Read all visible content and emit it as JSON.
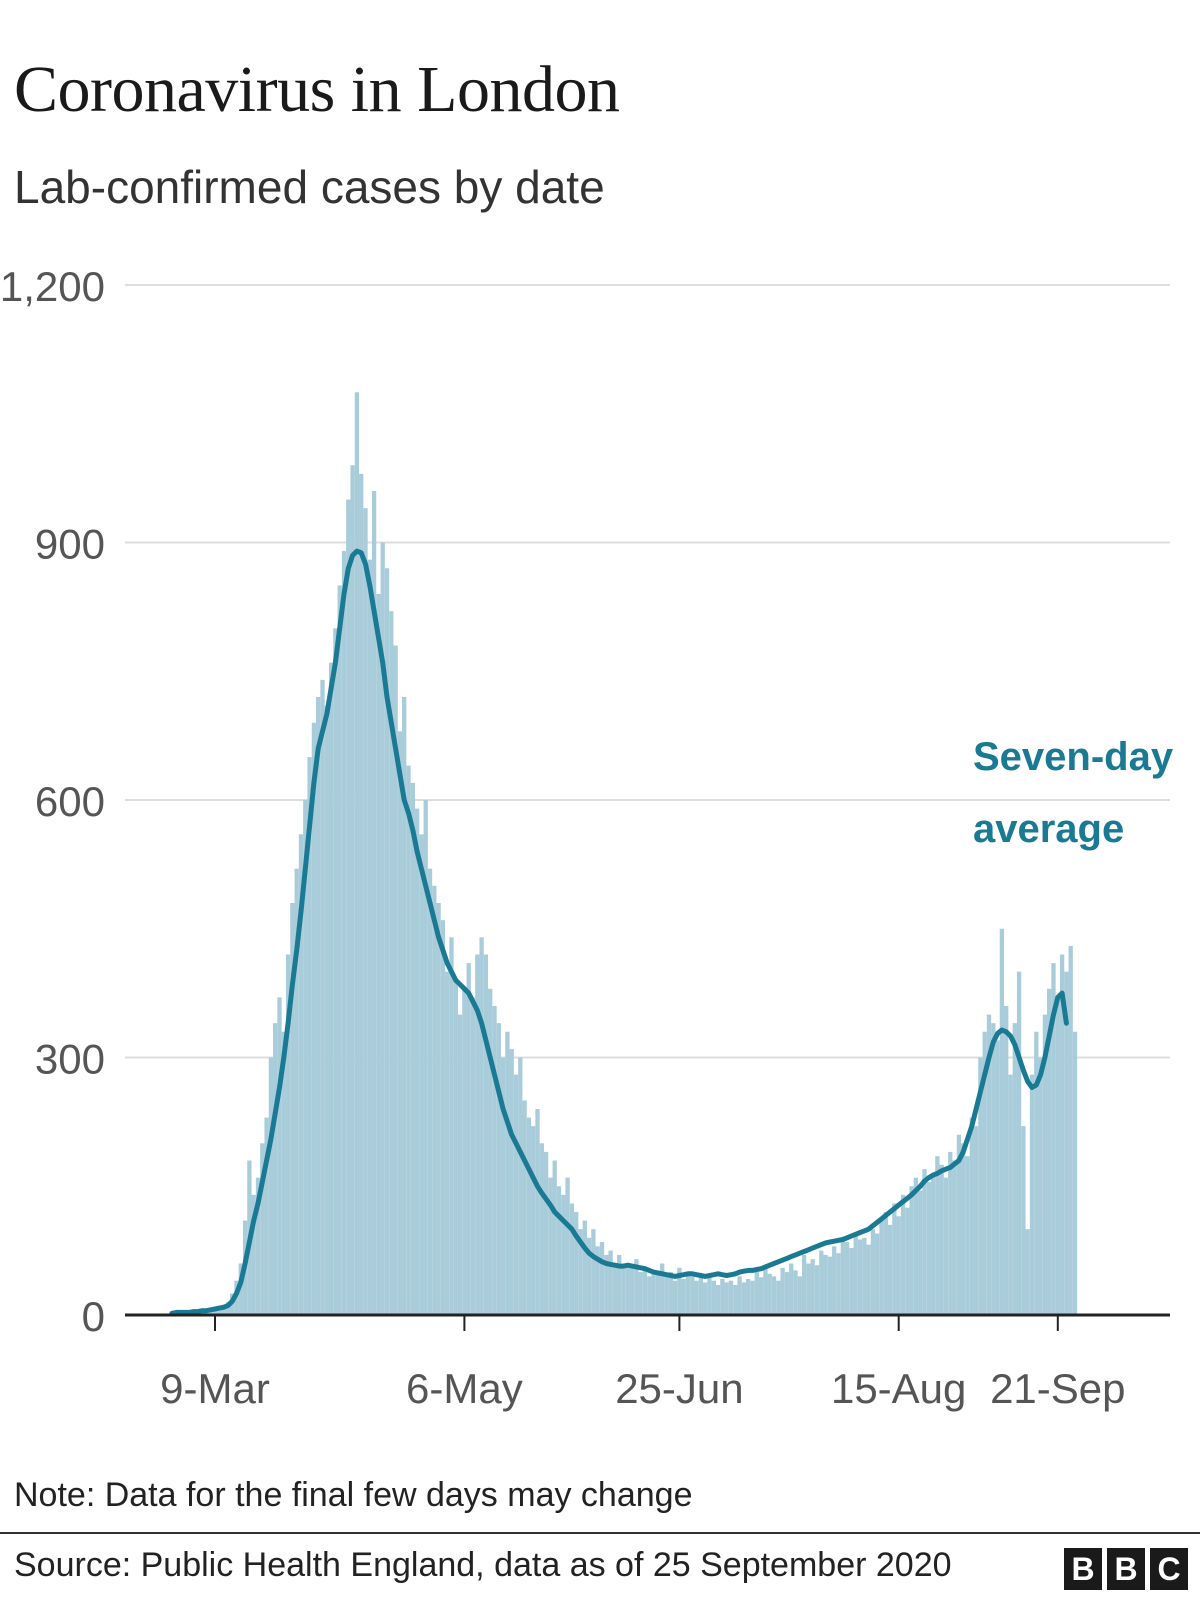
{
  "header": {
    "title": "Coronavirus in London",
    "subtitle": "Lab-confirmed cases by date"
  },
  "footer": {
    "note": "Note: Data for the final few days may change",
    "source": "Source: Public Health England, data as of 25 September 2020",
    "logo_letters": [
      "B",
      "B",
      "C"
    ]
  },
  "colors": {
    "bars": "#a8ccda",
    "line": "#1a7a93",
    "gridline": "#dddddd",
    "axis": "#222222",
    "tick_text": "#555555"
  },
  "chart_data": {
    "type": "bar",
    "title": "Coronavirus in London",
    "subtitle": "Lab-confirmed cases by date",
    "x_start": "2020-02-28",
    "x_ticks": [
      "9-Mar",
      "6-May",
      "25-Jun",
      "15-Aug",
      "21-Sep"
    ],
    "ylim": [
      0,
      1200
    ],
    "y_ticks": [
      0,
      300,
      600,
      900,
      1200
    ],
    "y_tick_labels": [
      "0",
      "300",
      "600",
      "900",
      "1,200"
    ],
    "grid": true,
    "series": [
      {
        "name": "Daily lab-confirmed cases",
        "kind": "bar",
        "values": [
          2,
          3,
          2,
          4,
          3,
          4,
          5,
          6,
          5,
          7,
          8,
          10,
          12,
          15,
          25,
          40,
          60,
          110,
          180,
          140,
          160,
          200,
          230,
          300,
          340,
          370,
          330,
          420,
          480,
          520,
          560,
          600,
          650,
          690,
          720,
          740,
          710,
          760,
          800,
          850,
          890,
          950,
          990,
          1075,
          980,
          940,
          880,
          960,
          840,
          900,
          870,
          820,
          780,
          680,
          720,
          640,
          620,
          590,
          560,
          600,
          520,
          500,
          480,
          460,
          400,
          440,
          390,
          350,
          380,
          410,
          370,
          420,
          440,
          420,
          380,
          360,
          340,
          300,
          330,
          310,
          280,
          300,
          250,
          230,
          220,
          240,
          200,
          190,
          160,
          180,
          150,
          140,
          160,
          130,
          120,
          100,
          110,
          90,
          100,
          80,
          85,
          70,
          75,
          60,
          70,
          55,
          60,
          55,
          65,
          50,
          55,
          45,
          50,
          48,
          60,
          45,
          50,
          40,
          55,
          42,
          50,
          45,
          40,
          48,
          38,
          45,
          40,
          35,
          42,
          38,
          40,
          35,
          45,
          38,
          42,
          40,
          50,
          44,
          55,
          48,
          45,
          40,
          55,
          50,
          60,
          52,
          45,
          70,
          60,
          65,
          58,
          75,
          70,
          68,
          80,
          72,
          90,
          85,
          78,
          95,
          88,
          90,
          82,
          100,
          95,
          110,
          120,
          105,
          130,
          115,
          140,
          125,
          150,
          160,
          145,
          170,
          155,
          165,
          185,
          175,
          160,
          190,
          180,
          210,
          200,
          185,
          230,
          220,
          300,
          330,
          350,
          340,
          320,
          450,
          360,
          280,
          340,
          400,
          220,
          100,
          280,
          330,
          300,
          350,
          380,
          410,
          370,
          420,
          400,
          430,
          330
        ]
      },
      {
        "name": "Seven-day average",
        "kind": "line",
        "values": [
          2,
          3,
          3,
          3,
          3,
          4,
          4,
          5,
          5,
          6,
          7,
          8,
          9,
          11,
          16,
          25,
          38,
          60,
          85,
          110,
          130,
          155,
          180,
          205,
          235,
          265,
          300,
          340,
          385,
          425,
          470,
          520,
          570,
          620,
          660,
          680,
          700,
          730,
          760,
          800,
          840,
          870,
          885,
          890,
          888,
          875,
          850,
          820,
          790,
          760,
          720,
          690,
          660,
          630,
          600,
          585,
          565,
          540,
          520,
          500,
          480,
          460,
          440,
          425,
          410,
          400,
          390,
          385,
          380,
          375,
          365,
          355,
          340,
          320,
          300,
          280,
          260,
          240,
          225,
          210,
          200,
          190,
          180,
          170,
          160,
          150,
          142,
          135,
          128,
          120,
          115,
          110,
          105,
          100,
          92,
          85,
          78,
          72,
          68,
          65,
          62,
          60,
          59,
          58,
          57,
          57,
          58,
          57,
          56,
          55,
          54,
          52,
          50,
          49,
          48,
          47,
          46,
          45,
          46,
          47,
          48,
          48,
          47,
          46,
          45,
          46,
          47,
          48,
          47,
          46,
          47,
          48,
          50,
          51,
          52,
          52,
          53,
          54,
          56,
          58,
          60,
          62,
          64,
          66,
          68,
          70,
          72,
          74,
          76,
          78,
          80,
          82,
          84,
          85,
          86,
          87,
          88,
          90,
          92,
          94,
          96,
          98,
          100,
          104,
          108,
          112,
          116,
          120,
          124,
          128,
          132,
          136,
          140,
          145,
          150,
          156,
          160,
          163,
          165,
          168,
          170,
          172,
          176,
          180,
          190,
          205,
          220,
          240,
          260,
          280,
          300,
          318,
          328,
          332,
          330,
          325,
          315,
          300,
          285,
          272,
          265,
          268,
          280,
          300,
          325,
          350,
          370,
          375,
          340
        ]
      }
    ],
    "annotations": [
      {
        "text": "Seven-day average",
        "lines": [
          "Seven-day",
          "average"
        ],
        "series": "Seven-day average"
      }
    ]
  }
}
